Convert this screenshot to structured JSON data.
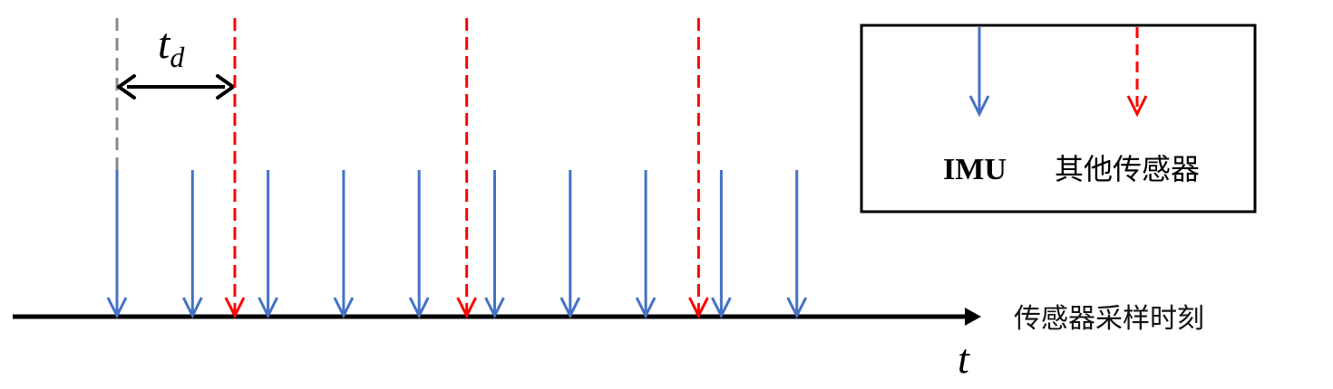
{
  "colors": {
    "imu": "#4472C4",
    "other": "#FF0000",
    "reference": "#888888",
    "axis": "#000000"
  },
  "axis": {
    "label": "传感器采样时刻",
    "variable": "t"
  },
  "delay": {
    "symbol": "t",
    "subscript": "d"
  },
  "legend": {
    "imu_label": "IMU",
    "other_label": "其他传感器"
  },
  "imu_samples": [
    0,
    1,
    2,
    3,
    4,
    5,
    6,
    7,
    8,
    9
  ],
  "other_sensor_samples": [
    1.56,
    4.63,
    7.7
  ],
  "time_delay": 1.56
}
